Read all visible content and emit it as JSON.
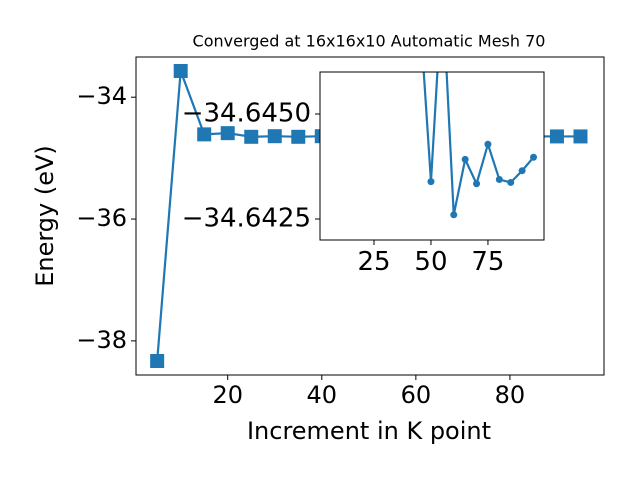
{
  "chart_data": [
    {
      "type": "line",
      "title": "Converged at 16x16x10 Automatic Mesh 70",
      "x_label": "Increment in K point",
      "y_label": "Energy (eV)",
      "x": [
        5,
        10,
        15,
        20,
        25,
        30,
        35,
        40,
        45,
        50,
        55,
        60,
        65,
        70,
        75,
        80,
        85,
        90,
        95
      ],
      "series": [
        {
          "color": "#1f77b4",
          "marker": "square",
          "values": [
            -38.33,
            -33.57,
            -34.61,
            -34.59,
            -34.65,
            -34.64,
            -34.65,
            -34.64,
            -34.6475,
            -34.64339,
            -34.648,
            -34.6426,
            -34.64392,
            -34.64334,
            -34.64428,
            -34.64344,
            -34.64337,
            -34.64365,
            -34.64397
          ]
        }
      ],
      "xlim": [
        0.5,
        100
      ],
      "ylim": [
        -38.56,
        -33.34
      ],
      "xticks": [
        20,
        40,
        60,
        80
      ],
      "yticks": [
        {
          "value": -38,
          "label": "−38"
        },
        {
          "value": -36,
          "label": "−36"
        },
        {
          "value": -34,
          "label": "−34"
        }
      ]
    },
    {
      "type": "line",
      "x": [
        45,
        50,
        55,
        60,
        65,
        70,
        75,
        80,
        85,
        90,
        95
      ],
      "series": [
        {
          "color": "#1f77b4",
          "marker": "circle",
          "values": [
            -34.6475,
            -34.64339,
            -34.648,
            -34.6426,
            -34.64392,
            -34.64334,
            -34.64428,
            -34.64344,
            -34.64337,
            -34.64365,
            -34.64397
          ]
        }
      ],
      "xlim": [
        1.3,
        99.6
      ],
      "ylim": [
        -34.642,
        -34.646
      ],
      "xticks": [
        25,
        50,
        75
      ],
      "yticks": [
        {
          "value": -34.6425,
          "label": "−34.6425"
        },
        {
          "value": -34.645,
          "label": "−34.6450"
        }
      ]
    }
  ]
}
